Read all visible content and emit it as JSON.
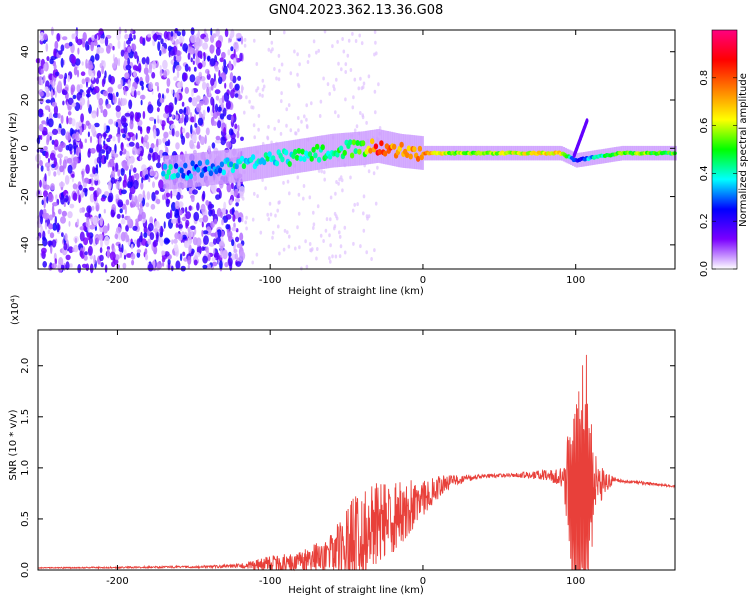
{
  "title": "GN04.2023.362.13.36.G08",
  "chart_data": [
    {
      "type": "heatmap",
      "panel": "spectrogram",
      "xlabel": "Height of straight line (km)",
      "ylabel": "Frequency (Hz)",
      "xlim": [
        -252,
        165
      ],
      "ylim": [
        -50,
        49
      ],
      "x_ticks": [
        -200,
        -100,
        0,
        100
      ],
      "x_tick_labels": [
        "-200",
        "-100",
        "0",
        "100"
      ],
      "y_ticks": [
        -40,
        -20,
        0,
        20,
        40
      ],
      "y_tick_labels": [
        "-40",
        "-20",
        "0",
        "20",
        "40"
      ],
      "ridge": [
        {
          "x": -165,
          "f": -10,
          "amp": 0.35
        },
        {
          "x": -150,
          "f": -9,
          "amp": 0.3
        },
        {
          "x": -135,
          "f": -8,
          "amp": 0.3
        },
        {
          "x": -120,
          "f": -7,
          "amp": 0.4
        },
        {
          "x": -100,
          "f": -5,
          "amp": 0.4
        },
        {
          "x": -80,
          "f": -3,
          "amp": 0.42
        },
        {
          "x": -60,
          "f": -1,
          "amp": 0.45
        },
        {
          "x": -40,
          "f": 0,
          "amp": 0.5
        },
        {
          "x": -30,
          "f": 1,
          "amp": 0.85
        },
        {
          "x": -15,
          "f": -1,
          "amp": 0.7
        },
        {
          "x": 0,
          "f": -2,
          "amp": 0.75
        },
        {
          "x": 20,
          "f": -2,
          "amp": 0.55
        },
        {
          "x": 60,
          "f": -2,
          "amp": 0.6
        },
        {
          "x": 90,
          "f": -2,
          "amp": 0.65
        },
        {
          "x": 100,
          "f": -5,
          "amp": 0.25
        },
        {
          "x": 130,
          "f": -2,
          "amp": 0.55
        },
        {
          "x": 165,
          "f": -2,
          "amp": 0.5
        }
      ]
    },
    {
      "type": "colorbar",
      "label": "Normalized spectral amplitude",
      "range": [
        0,
        1
      ],
      "ticks": [
        0.0,
        0.2,
        0.4,
        0.6,
        0.8
      ],
      "tick_labels": [
        "0.0",
        "0.2",
        "0.4",
        "0.6",
        "0.8"
      ],
      "colors": [
        "#ffffff",
        "#7a00ff",
        "#0000ff",
        "#00ffff",
        "#00ff00",
        "#ffff00",
        "#ff8000",
        "#ff0000",
        "#ff0080"
      ]
    },
    {
      "type": "line",
      "panel": "snr",
      "xlabel": "Height of straight line (km)",
      "ylabel": "SNR (10 * v/v)",
      "y_multiplier": "(x10⁴)",
      "xlim": [
        -252,
        165
      ],
      "ylim": [
        0,
        2.35
      ],
      "x_ticks": [
        -200,
        -100,
        0,
        100
      ],
      "x_tick_labels": [
        "-200",
        "-100",
        "0",
        "100"
      ],
      "y_ticks": [
        0.0,
        0.5,
        1.0,
        1.5,
        2.0
      ],
      "y_tick_labels": [
        "0.0",
        "0.5",
        "1.0",
        "1.5",
        "2.0"
      ],
      "color": "#e8403a",
      "envelope": [
        {
          "x": -252,
          "base": 0.02,
          "noise": 0.005
        },
        {
          "x": -150,
          "base": 0.03,
          "noise": 0.01
        },
        {
          "x": -120,
          "base": 0.04,
          "noise": 0.02
        },
        {
          "x": -100,
          "base": 0.06,
          "noise": 0.08
        },
        {
          "x": -80,
          "base": 0.08,
          "noise": 0.1
        },
        {
          "x": -60,
          "base": 0.15,
          "noise": 0.2
        },
        {
          "x": -40,
          "base": 0.35,
          "noise": 0.5
        },
        {
          "x": -20,
          "base": 0.5,
          "noise": 0.35
        },
        {
          "x": 0,
          "base": 0.72,
          "noise": 0.2
        },
        {
          "x": 20,
          "base": 0.88,
          "noise": 0.05
        },
        {
          "x": 40,
          "base": 0.92,
          "noise": 0.02
        },
        {
          "x": 60,
          "base": 0.93,
          "noise": 0.02
        },
        {
          "x": 80,
          "base": 0.93,
          "noise": 0.05
        },
        {
          "x": 92,
          "base": 0.9,
          "noise": 0.1
        },
        {
          "x": 100,
          "base": 0.65,
          "noise": 1.3
        },
        {
          "x": 106,
          "base": 0.7,
          "noise": 1.6
        },
        {
          "x": 112,
          "base": 0.85,
          "noise": 0.3
        },
        {
          "x": 125,
          "base": 0.88,
          "noise": 0.02
        },
        {
          "x": 165,
          "base": 0.82,
          "noise": 0.01
        }
      ]
    }
  ]
}
